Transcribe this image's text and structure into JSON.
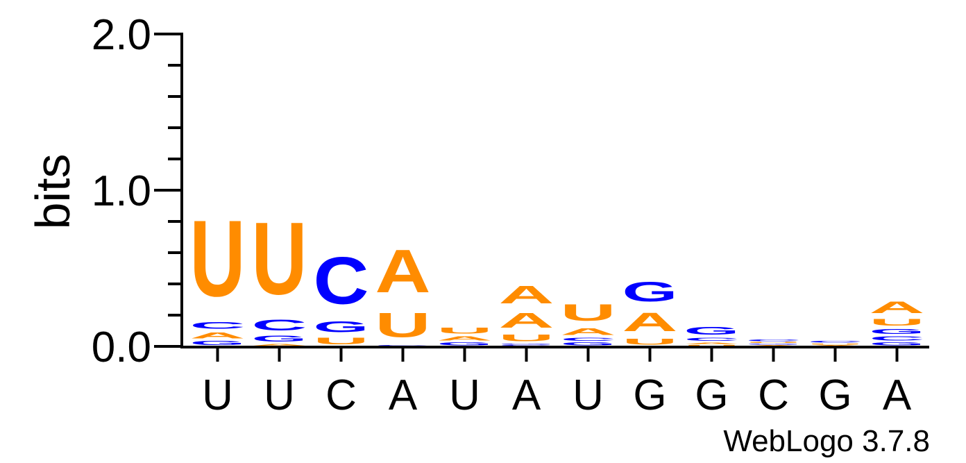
{
  "chart_data": {
    "type": "sequence-logo",
    "ylabel": "bits",
    "ylim": [
      0,
      2.0
    ],
    "y_ticks": [
      "0.0",
      "1.0",
      "2.0"
    ],
    "y_tick_values": [
      0,
      1,
      2
    ],
    "y_minor_step": 0.2,
    "x_labels": [
      "U",
      "U",
      "C",
      "A",
      "U",
      "A",
      "U",
      "G",
      "G",
      "C",
      "G",
      "A"
    ],
    "credit": "WebLogo 3.7.8",
    "colors": {
      "A": "#ff8c00",
      "U": "#ff8c00",
      "C": "#0000ff",
      "G": "#0000ff"
    },
    "positions": [
      [
        {
          "letter": "G",
          "height": 0.04
        },
        {
          "letter": "A",
          "height": 0.06
        },
        {
          "letter": "C",
          "height": 0.07
        },
        {
          "letter": "U",
          "height": 0.78
        }
      ],
      [
        {
          "letter": "A",
          "height": 0.02
        },
        {
          "letter": "G",
          "height": 0.06
        },
        {
          "letter": "C",
          "height": 0.11
        },
        {
          "letter": "U",
          "height": 0.74
        }
      ],
      [
        {
          "letter": "U",
          "height": 0.07
        },
        {
          "letter": "G",
          "height": 0.11
        },
        {
          "letter": "C",
          "height": 0.48
        }
      ],
      [
        {
          "letter": "C",
          "height": 0.01
        },
        {
          "letter": "U",
          "height": 0.25
        },
        {
          "letter": "A",
          "height": 0.44
        }
      ],
      [
        {
          "letter": "G",
          "height": 0.03
        },
        {
          "letter": "A",
          "height": 0.04
        },
        {
          "letter": "U",
          "height": 0.06
        }
      ],
      [
        {
          "letter": "C",
          "height": 0.01
        },
        {
          "letter": "G",
          "height": 0.01
        },
        {
          "letter": "U",
          "height": 0.07
        },
        {
          "letter": "A",
          "height": 0.15
        },
        {
          "letter": "A",
          "height": 0.18
        }
      ],
      [
        {
          "letter": "G",
          "height": 0.03
        },
        {
          "letter": "C",
          "height": 0.03
        },
        {
          "letter": "A",
          "height": 0.07
        },
        {
          "letter": "U",
          "height": 0.17
        }
      ],
      [
        {
          "letter": "U",
          "height": 0.06
        },
        {
          "letter": "A",
          "height": 0.19
        },
        {
          "letter": "G",
          "height": 0.2
        }
      ],
      [
        {
          "letter": "U",
          "height": 0.01
        },
        {
          "letter": "A",
          "height": 0.02
        },
        {
          "letter": "C",
          "height": 0.03
        },
        {
          "letter": "G",
          "height": 0.08
        }
      ],
      [
        {
          "letter": "A",
          "height": 0.01
        },
        {
          "letter": "G",
          "height": 0.01
        },
        {
          "letter": "U",
          "height": 0.01
        },
        {
          "letter": "C",
          "height": 0.02
        }
      ],
      [
        {
          "letter": "A",
          "height": 0.01
        },
        {
          "letter": "U",
          "height": 0.01
        },
        {
          "letter": "C",
          "height": 0.02
        }
      ],
      [
        {
          "letter": "G",
          "height": 0.03
        },
        {
          "letter": "C",
          "height": 0.04
        },
        {
          "letter": "G",
          "height": 0.05
        },
        {
          "letter": "U",
          "height": 0.07
        },
        {
          "letter": "A",
          "height": 0.12
        }
      ]
    ]
  }
}
